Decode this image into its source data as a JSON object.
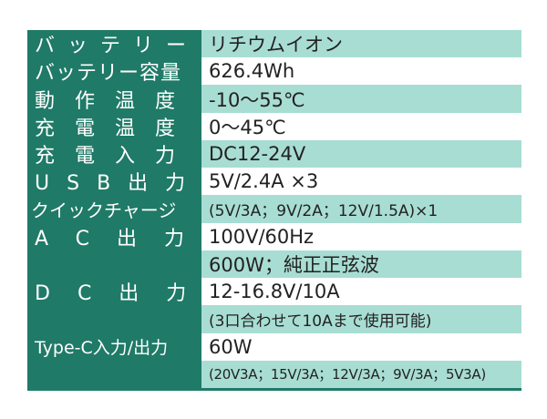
{
  "rows": [
    {
      "label": "バッテリー",
      "value": "リチウムイオン"
    },
    {
      "label": "バッテリー容量",
      "value": "626.4Wh"
    },
    {
      "label": "動作温度",
      "value": "-10～55℃"
    },
    {
      "label": "充電温度",
      "value": "0～45℃"
    },
    {
      "label": "充電入力",
      "value": "DC12-24V"
    },
    {
      "label": "USB出力",
      "value": "5V/2.4A ×3"
    },
    {
      "label": "クイックチャージ",
      "value": "(5V/3A；9V/2A；12V/1.5A)×1"
    },
    {
      "label": "AC出力",
      "value": "100V/60Hz"
    },
    {
      "label": "",
      "value": "600W；純正正弦波"
    },
    {
      "label": "DC出力",
      "value": "12-16.8V/10A"
    },
    {
      "label": "",
      "value": "(3口合わせて10Aまで使用可能)"
    },
    {
      "label": "Type-C入力/出力",
      "value": "60W"
    },
    {
      "label": "",
      "value": "(20V3A；15V/3A；12V/3A；9V/3A；5V3A)"
    }
  ],
  "colors": {
    "header_bg": "#1f7a67",
    "teal_row": "#a8ddd3",
    "white_row": "#ffffff"
  }
}
